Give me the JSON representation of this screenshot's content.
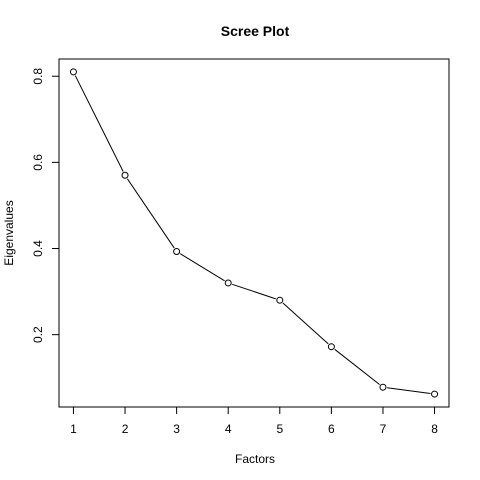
{
  "chart_data": {
    "type": "line",
    "title": "Scree Plot",
    "xlabel": "Factors",
    "ylabel": "Eigenvalues",
    "x": [
      1,
      2,
      3,
      4,
      5,
      6,
      7,
      8
    ],
    "values": [
      0.81,
      0.57,
      0.393,
      0.32,
      0.28,
      0.172,
      0.078,
      0.062
    ],
    "xlim": [
      0.72,
      8.28
    ],
    "ylim": [
      0.032,
      0.84
    ],
    "xticks": [
      1,
      2,
      3,
      4,
      5,
      6,
      7,
      8
    ],
    "yticks": [
      0.2,
      0.4,
      0.6,
      0.8
    ],
    "ytick_labels": [
      "0.2",
      "0.4",
      "0.6",
      "0.8"
    ],
    "point_style": "open-circle",
    "grid": false,
    "legend": "none"
  }
}
